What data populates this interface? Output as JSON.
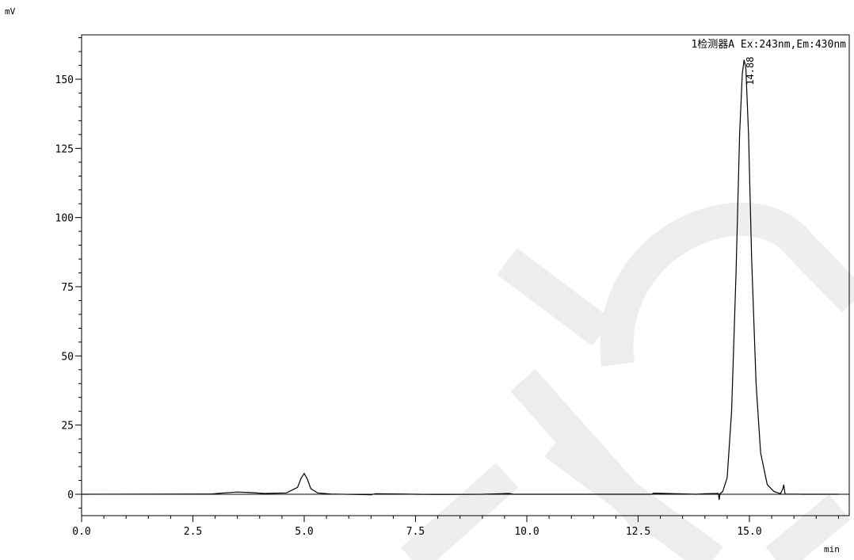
{
  "chart_data": {
    "type": "line",
    "ylabel": "mV",
    "xlabel": "min",
    "xlim": [
      0.0,
      17.0
    ],
    "ylim": [
      -8,
      166
    ],
    "x_ticks": [
      0.0,
      2.5,
      5.0,
      7.5,
      10.0,
      12.5,
      15.0
    ],
    "x_tick_labels": [
      "0.0",
      "2.5",
      "5.0",
      "7.5",
      "10.0",
      "12.5",
      "15.0"
    ],
    "y_ticks": [
      0,
      25,
      50,
      75,
      100,
      125,
      150
    ],
    "y_tick_labels": [
      "0",
      "25",
      "50",
      "75",
      "100",
      "125",
      "150"
    ],
    "detector_label": "1检测器A Ex:243nm,Em:430nm",
    "grid": false,
    "series": [
      {
        "x": [
          0.0,
          2.9,
          3.2,
          3.5,
          3.8,
          4.1,
          4.6,
          4.85,
          4.93,
          5.0,
          5.07,
          5.15,
          5.3,
          5.6,
          6.5,
          6.6,
          7.5,
          8.0,
          9.0,
          9.6,
          9.7,
          10.5,
          11.5,
          12.8,
          12.85,
          13.8,
          14.0,
          14.3,
          14.32,
          14.34,
          14.4,
          14.5,
          14.6,
          14.7,
          14.78,
          14.84,
          14.88,
          14.92,
          14.98,
          15.05,
          15.15,
          15.25,
          15.4,
          15.55,
          15.7,
          15.75,
          15.77,
          15.8,
          16.2,
          17.0
        ],
        "y": [
          0.0,
          0.1,
          0.5,
          0.8,
          0.6,
          0.3,
          0.5,
          2.5,
          5.8,
          7.5,
          5.5,
          2.0,
          0.5,
          0.1,
          -0.2,
          0.2,
          0.0,
          -0.1,
          0.0,
          0.3,
          0.0,
          0.0,
          0.0,
          0.0,
          0.4,
          0.0,
          0.2,
          0.3,
          -2.0,
          0.2,
          1.0,
          6.0,
          30.0,
          80.0,
          130.0,
          152.0,
          157.0,
          154.0,
          130.0,
          85.0,
          40.0,
          15.0,
          3.5,
          1.0,
          0.2,
          2.0,
          3.5,
          0.1,
          0.0,
          0.0
        ]
      }
    ],
    "peak_annotations": [
      {
        "x": 14.88,
        "y": 157.0,
        "label": "14.88"
      }
    ]
  }
}
